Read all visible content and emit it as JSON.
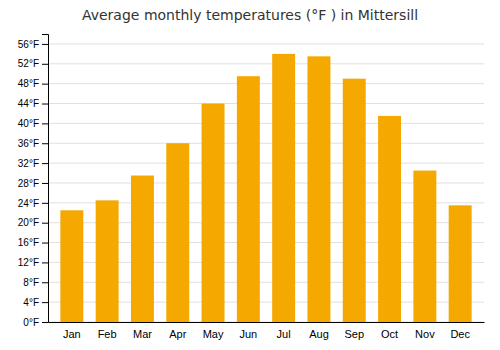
{
  "chart_data": {
    "type": "bar",
    "title": "Average monthly temperatures (°F ) in Mittersill",
    "categories": [
      "Jan",
      "Feb",
      "Mar",
      "Apr",
      "May",
      "Jun",
      "Jul",
      "Aug",
      "Sep",
      "Oct",
      "Nov",
      "Dec"
    ],
    "values": [
      22.5,
      24.5,
      29.5,
      36.0,
      44.0,
      49.5,
      54.0,
      53.5,
      49.0,
      41.5,
      30.5,
      23.5
    ],
    "color": "#F5A800",
    "ylim": [
      0,
      58
    ],
    "yticks": [
      {
        "value": 0,
        "label": "0°F"
      },
      {
        "value": 4,
        "label": "4°F"
      },
      {
        "value": 8,
        "label": "8°F"
      },
      {
        "value": 12,
        "label": "12°F"
      },
      {
        "value": 16,
        "label": "16°F"
      },
      {
        "value": 20,
        "label": "20°F"
      },
      {
        "value": 24,
        "label": "24°F"
      },
      {
        "value": 28,
        "label": "28°F"
      },
      {
        "value": 32,
        "label": "32°F"
      },
      {
        "value": 36,
        "label": "36°F"
      },
      {
        "value": 40,
        "label": "40°F"
      },
      {
        "value": 44,
        "label": "44°F"
      },
      {
        "value": 48,
        "label": "48°F"
      },
      {
        "value": 52,
        "label": "52°F"
      },
      {
        "value": 56,
        "label": "56°F"
      }
    ],
    "grid": true
  }
}
